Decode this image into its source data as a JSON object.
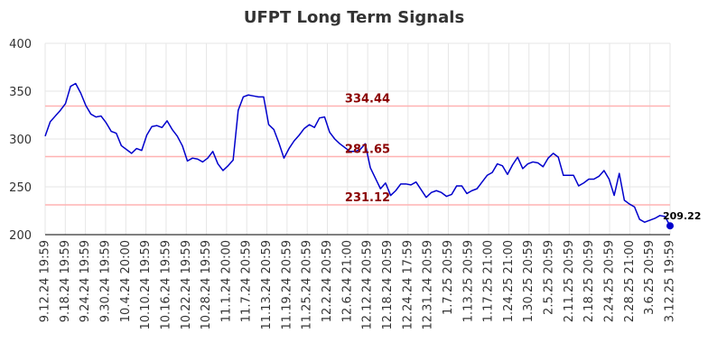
{
  "chart_data": {
    "type": "line",
    "title": "UFPT Long Term Signals",
    "xlabel": "",
    "ylabel": "",
    "ylim": [
      200,
      400
    ],
    "y_ticks": [
      200,
      250,
      300,
      350,
      400
    ],
    "grid": true,
    "line_color": "#0000cc",
    "reference_line_color": "#ffb3b3",
    "reference_label_color": "#8b0000",
    "x_tick_labels": [
      "9.12.24 19:59",
      "9.18.24 19:59",
      "9.24.24 19:59",
      "9.30.24 19:59",
      "10.4.24 20:00",
      "10.10.24 19:59",
      "10.16.24 19:59",
      "10.22.24 19:59",
      "10.28.24 19:59",
      "11.1.24 20:00",
      "11.7.24 20:59",
      "11.13.24 20:59",
      "11.19.24 20:59",
      "11.25.24 20:59",
      "12.2.24 20:59",
      "12.6.24 21:00",
      "12.12.24 20:59",
      "12.18.24 20:59",
      "12.24.24 17:59",
      "12.31.24 20:59",
      "1.7.25 20:59",
      "1.13.25 20:59",
      "1.17.25 21:00",
      "1.24.25 21:00",
      "1.30.25 20:59",
      "2.5.25 20:59",
      "2.11.25 20:59",
      "2.18.25 20:59",
      "2.24.25 20:59",
      "2.28.25 21:00",
      "3.6.25 20:59",
      "3.12.25 19:59"
    ],
    "reference_lines": [
      {
        "value": 334.44,
        "label": "334.44"
      },
      {
        "value": 281.65,
        "label": "281.65"
      },
      {
        "value": 231.12,
        "label": "231.12"
      }
    ],
    "last_point": {
      "value": 209.22,
      "label": "209.22"
    },
    "series": [
      {
        "values": [
          303,
          318,
          324,
          330,
          337,
          355,
          358,
          348,
          335,
          326,
          323,
          324,
          317,
          308,
          306,
          293,
          289,
          285,
          290,
          288,
          304,
          313,
          314,
          312,
          319,
          310,
          303,
          293,
          277,
          280,
          279,
          276,
          280,
          287,
          274,
          267,
          272,
          278,
          330,
          344,
          346,
          345,
          344,
          344,
          315,
          310,
          296,
          280,
          290,
          298,
          304,
          311,
          315,
          312,
          322,
          323,
          307,
          300,
          295,
          291,
          287,
          287,
          289,
          295,
          270,
          259,
          248,
          254,
          241,
          246,
          253,
          253,
          252,
          255,
          247,
          239,
          244,
          246,
          244,
          240,
          242,
          251,
          251,
          243,
          246,
          248,
          255,
          262,
          265,
          274,
          272,
          263,
          273,
          281,
          269,
          274,
          276,
          275,
          271,
          280,
          285,
          281,
          262,
          262,
          262,
          251,
          254,
          258,
          258,
          261,
          267,
          258,
          241,
          264,
          236,
          232,
          229,
          216,
          213,
          215,
          217,
          220,
          219,
          209.22
        ]
      }
    ]
  }
}
